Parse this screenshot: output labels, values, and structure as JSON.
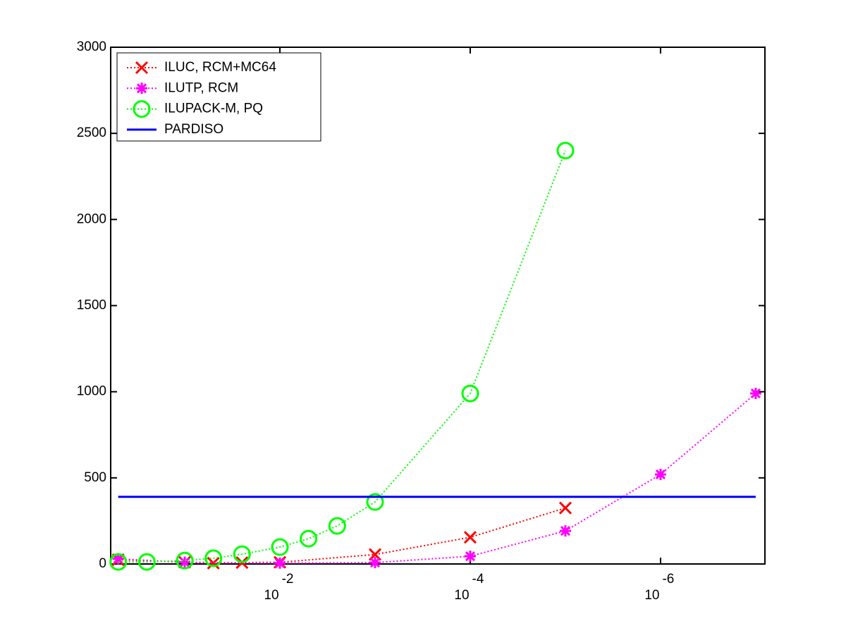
{
  "chart_data": {
    "type": "line",
    "xscale": "log",
    "yscale": "linear",
    "legend": "upper left",
    "xlim": [
      0.6,
      8e-08
    ],
    "ylim": [
      0,
      3000
    ],
    "xticks": [
      {
        "value": 0.01,
        "label": "10",
        "exponent": "-2"
      },
      {
        "value": 0.0001,
        "label": "10",
        "exponent": "-4"
      },
      {
        "value": 1e-06,
        "label": "10",
        "exponent": "-6"
      }
    ],
    "yticks": [
      0,
      500,
      1000,
      1500,
      2000,
      2500,
      3000
    ],
    "series": [
      {
        "name": "ILUC, RCM+MC64",
        "color": "#ff0000",
        "marker": "x",
        "linestyle": "dotted",
        "x": [
          0.5,
          0.1,
          0.05,
          0.025,
          0.01,
          0.001,
          0.0001,
          1e-05
        ],
        "values": [
          25,
          10,
          5,
          8,
          10,
          55,
          155,
          325
        ]
      },
      {
        "name": "ILUTP, RCM",
        "color": "#ff00ff",
        "marker": "asterisk",
        "linestyle": "dotted",
        "x": [
          0.5,
          0.1,
          0.01,
          0.001,
          0.0001,
          1e-05,
          1e-06,
          1e-07
        ],
        "values": [
          30,
          10,
          5,
          8,
          45,
          192,
          520,
          990
        ]
      },
      {
        "name": "ILUPACK-M, PQ",
        "color": "#00ff00",
        "marker": "circle",
        "linestyle": "dotted",
        "x": [
          0.5,
          0.25,
          0.1,
          0.05,
          0.025,
          0.01,
          0.005,
          0.0025,
          0.001,
          0.0001,
          1e-05
        ],
        "values": [
          12,
          12,
          20,
          33,
          57,
          98,
          147,
          221,
          360,
          990,
          2400
        ]
      },
      {
        "name": "PARDISO",
        "color": "#0000ff",
        "marker": "none",
        "linestyle": "solid",
        "x": [
          0.5,
          1e-07
        ],
        "values": [
          390,
          390
        ]
      }
    ]
  }
}
